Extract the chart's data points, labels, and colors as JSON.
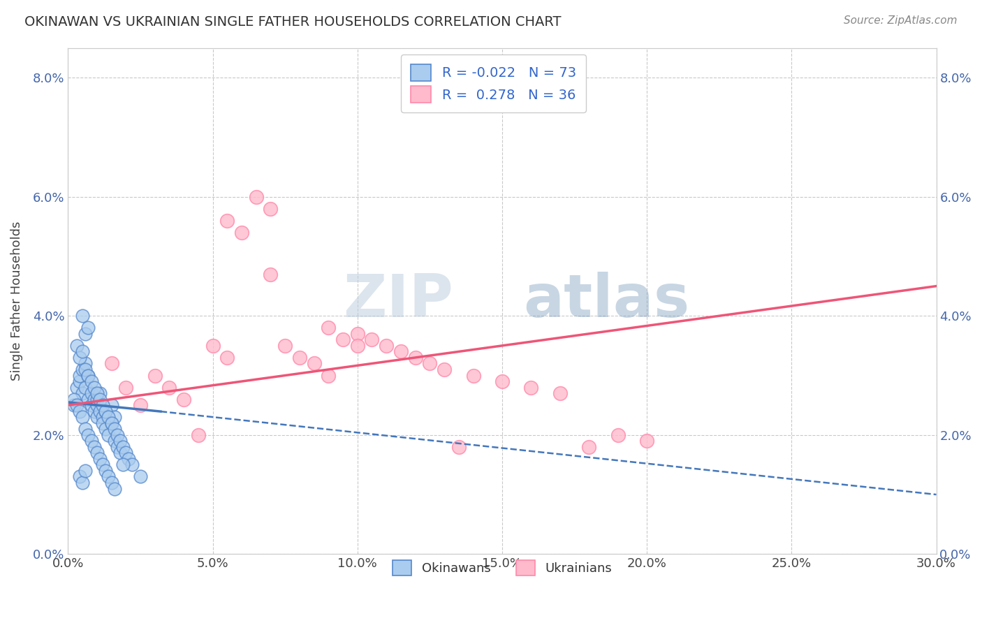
{
  "title": "OKINAWAN VS UKRAINIAN SINGLE FATHER HOUSEHOLDS CORRELATION CHART",
  "source": "Source: ZipAtlas.com",
  "xlabel_okinawan": "Okinawans",
  "xlabel_ukrainian": "Ukrainians",
  "ylabel": "Single Father Households",
  "xlim": [
    0.0,
    30.0
  ],
  "ylim": [
    0.0,
    8.5
  ],
  "x_ticks": [
    0.0,
    5.0,
    10.0,
    15.0,
    20.0,
    25.0,
    30.0
  ],
  "y_ticks": [
    0.0,
    2.0,
    4.0,
    6.0,
    8.0
  ],
  "blue_R": -0.022,
  "blue_N": 73,
  "pink_R": 0.278,
  "pink_N": 36,
  "blue_fill": "#AACCEE",
  "blue_edge": "#5588CC",
  "pink_fill": "#FFBBCC",
  "pink_edge": "#FF88AA",
  "blue_line_color": "#4477BB",
  "pink_line_color": "#EE5577",
  "watermark_zip": "ZIP",
  "watermark_atlas": "atlas",
  "background_color": "#FFFFFF",
  "grid_color": "#BBBBBB",
  "okinawan_x": [
    0.2,
    0.3,
    0.4,
    0.4,
    0.5,
    0.5,
    0.6,
    0.6,
    0.7,
    0.7,
    0.8,
    0.8,
    0.9,
    0.9,
    1.0,
    1.0,
    1.0,
    1.1,
    1.1,
    1.2,
    1.2,
    1.3,
    1.3,
    1.4,
    1.5,
    1.5,
    1.6,
    1.6,
    1.7,
    1.8,
    0.3,
    0.4,
    0.5,
    0.6,
    0.7,
    0.8,
    0.9,
    1.0,
    1.1,
    1.2,
    1.3,
    1.4,
    1.5,
    1.6,
    1.7,
    1.8,
    1.9,
    2.0,
    2.1,
    2.2,
    0.2,
    0.3,
    0.4,
    0.5,
    0.6,
    0.7,
    0.8,
    0.9,
    1.0,
    1.1,
    1.2,
    1.3,
    1.4,
    1.5,
    1.6,
    0.5,
    0.6,
    0.7,
    1.9,
    2.5,
    0.4,
    0.5,
    0.6
  ],
  "okinawan_y": [
    2.5,
    2.8,
    2.9,
    3.0,
    3.1,
    2.7,
    2.8,
    3.2,
    2.6,
    3.0,
    2.7,
    2.5,
    2.6,
    2.4,
    2.5,
    2.3,
    2.6,
    2.4,
    2.7,
    2.3,
    2.2,
    2.1,
    2.4,
    2.0,
    2.2,
    2.5,
    2.3,
    1.9,
    1.8,
    1.7,
    3.5,
    3.3,
    3.4,
    3.1,
    3.0,
    2.9,
    2.8,
    2.7,
    2.6,
    2.5,
    2.4,
    2.3,
    2.2,
    2.1,
    2.0,
    1.9,
    1.8,
    1.7,
    1.6,
    1.5,
    2.6,
    2.5,
    2.4,
    2.3,
    2.1,
    2.0,
    1.9,
    1.8,
    1.7,
    1.6,
    1.5,
    1.4,
    1.3,
    1.2,
    1.1,
    4.0,
    3.7,
    3.8,
    1.5,
    1.3,
    1.3,
    1.2,
    1.4
  ],
  "ukrainian_x": [
    1.5,
    2.0,
    2.5,
    3.0,
    3.5,
    4.0,
    4.5,
    5.0,
    5.5,
    6.0,
    6.5,
    7.0,
    7.5,
    8.0,
    8.5,
    9.0,
    9.5,
    10.0,
    10.5,
    11.0,
    11.5,
    12.0,
    12.5,
    13.0,
    13.5,
    14.0,
    15.0,
    16.0,
    17.0,
    18.0,
    19.0,
    20.0,
    7.0,
    5.5,
    9.0,
    10.0
  ],
  "ukrainian_y": [
    3.2,
    2.8,
    2.5,
    3.0,
    2.8,
    2.6,
    2.0,
    3.5,
    3.3,
    5.4,
    6.0,
    5.8,
    3.5,
    3.3,
    3.2,
    3.8,
    3.6,
    3.7,
    3.6,
    3.5,
    3.4,
    3.3,
    3.2,
    3.1,
    1.8,
    3.0,
    2.9,
    2.8,
    2.7,
    1.8,
    2.0,
    1.9,
    4.7,
    5.6,
    3.0,
    3.5
  ],
  "pink_trend_start_y": 2.5,
  "pink_trend_end_y": 4.5,
  "blue_trend_start_y": 2.55,
  "blue_trend_end_y": 1.0
}
